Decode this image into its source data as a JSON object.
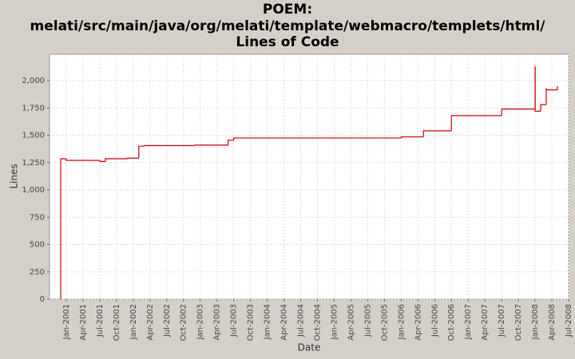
{
  "chart_data": {
    "type": "step",
    "title": [
      "POEM:",
      "melati/src/main/java/org/melati/template/webmacro/templets/html/",
      "Lines of Code"
    ],
    "x_label": "Date",
    "y_label": "Lines",
    "x": [
      "2000-12",
      "2000-12",
      "2001-01",
      "2001-07",
      "2001-08",
      "2001-12",
      "2002-02",
      "2002-03",
      "2002-12",
      "2003-06",
      "2003-07",
      "2006-01",
      "2006-05",
      "2006-10",
      "2006-10",
      "2007-07",
      "2008-01",
      "2008-01",
      "2008-01",
      "2008-02",
      "2008-03",
      "2008-03",
      "2008-03",
      "2008-05"
    ],
    "series": [
      {
        "name": "Lines",
        "color": "#cc0000",
        "values": [
          0,
          1285,
          1270,
          1260,
          1285,
          1290,
          1400,
          1405,
          1410,
          1455,
          1475,
          1485,
          1540,
          1670,
          1680,
          1740,
          2130,
          1740,
          1720,
          1780,
          1900,
          1930,
          1915,
          1950
        ]
      }
    ],
    "xlim": [
      "2000-10",
      "2008-07"
    ],
    "xticks": [
      {
        "value": "2001-01",
        "label": "Jan-2001"
      },
      {
        "value": "2001-04",
        "label": "Apr-2001"
      },
      {
        "value": "2001-07",
        "label": "Jul-2001"
      },
      {
        "value": "2001-10",
        "label": "Oct-2001"
      },
      {
        "value": "2002-01",
        "label": "Jan-2002"
      },
      {
        "value": "2002-04",
        "label": "Apr-2002"
      },
      {
        "value": "2002-07",
        "label": "Jul-2002"
      },
      {
        "value": "2002-10",
        "label": "Oct-2002"
      },
      {
        "value": "2003-01",
        "label": "Jan-2003"
      },
      {
        "value": "2003-04",
        "label": "Apr-2003"
      },
      {
        "value": "2003-07",
        "label": "Jul-2003"
      },
      {
        "value": "2003-10",
        "label": "Oct-2003"
      },
      {
        "value": "2004-01",
        "label": "Jan-2004"
      },
      {
        "value": "2004-04",
        "label": "Apr-2004"
      },
      {
        "value": "2004-07",
        "label": "Jul-2004"
      },
      {
        "value": "2004-10",
        "label": "Oct-2004"
      },
      {
        "value": "2005-01",
        "label": "Jan-2005"
      },
      {
        "value": "2005-04",
        "label": "Apr-2005"
      },
      {
        "value": "2005-07",
        "label": "Jul-2005"
      },
      {
        "value": "2005-10",
        "label": "Oct-2005"
      },
      {
        "value": "2006-01",
        "label": "Jan-2006"
      },
      {
        "value": "2006-04",
        "label": "Apr-2006"
      },
      {
        "value": "2006-07",
        "label": "Jul-2006"
      },
      {
        "value": "2006-10",
        "label": "Oct-2006"
      },
      {
        "value": "2007-01",
        "label": "Jan-2007"
      },
      {
        "value": "2007-04",
        "label": "Apr-2007"
      },
      {
        "value": "2007-07",
        "label": "Jul-2007"
      },
      {
        "value": "2007-10",
        "label": "Oct-2007"
      },
      {
        "value": "2008-01",
        "label": "Jan-2008"
      },
      {
        "value": "2008-04",
        "label": "Apr-2008"
      },
      {
        "value": "2008-07",
        "label": "Jul-2008"
      }
    ],
    "ylim": [
      0,
      2241
    ],
    "yticks": [
      0,
      250,
      500,
      750,
      {
        "value": 1000,
        "label": "1,000"
      },
      {
        "value": 1250,
        "label": "1,250"
      },
      {
        "value": 1500,
        "label": "1,500"
      },
      {
        "value": 1750,
        "label": "1,750"
      },
      {
        "value": 2000,
        "label": "2,000"
      }
    ],
    "grid": true
  }
}
